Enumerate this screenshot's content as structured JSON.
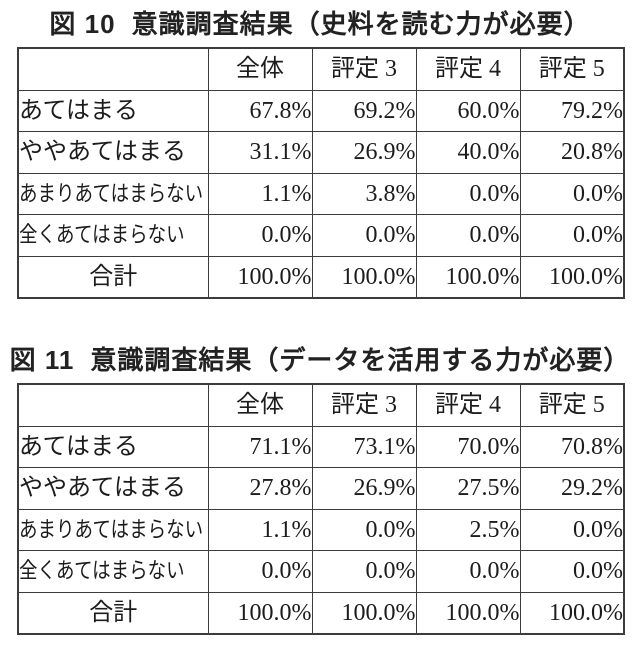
{
  "page": {
    "background": "#ffffff",
    "text_color": "#1c1c1c",
    "border_color": "#3c3c3c"
  },
  "tables": [
    {
      "title_prefix": "図 10",
      "title_body": "意識調査結果（史料を読む力が必要）",
      "columns": [
        "",
        "全体",
        "評定 3",
        "評定 4",
        "評定 5"
      ],
      "rows": [
        {
          "label": "あてはまる",
          "values": [
            "67.8%",
            "69.2%",
            "60.0%",
            "79.2%"
          ]
        },
        {
          "label": "ややあてはまる",
          "values": [
            "31.1%",
            "26.9%",
            "40.0%",
            "20.8%"
          ]
        },
        {
          "label": "あまりあてはまらない",
          "values": [
            "1.1%",
            "3.8%",
            "0.0%",
            "0.0%"
          ]
        },
        {
          "label": "全くあてはまらない",
          "values": [
            "0.0%",
            "0.0%",
            "0.0%",
            "0.0%"
          ]
        },
        {
          "label": "合計",
          "values": [
            "100.0%",
            "100.0%",
            "100.0%",
            "100.0%"
          ]
        }
      ]
    },
    {
      "title_prefix": "図 11",
      "title_body": "意識調査結果（データを活用する力が必要）",
      "columns": [
        "",
        "全体",
        "評定 3",
        "評定 4",
        "評定 5"
      ],
      "rows": [
        {
          "label": "あてはまる",
          "values": [
            "71.1%",
            "73.1%",
            "70.0%",
            "70.8%"
          ]
        },
        {
          "label": "ややあてはまる",
          "values": [
            "27.8%",
            "26.9%",
            "27.5%",
            "29.2%"
          ]
        },
        {
          "label": "あまりあてはまらない",
          "values": [
            "1.1%",
            "0.0%",
            "2.5%",
            "0.0%"
          ]
        },
        {
          "label": "全くあてはまらない",
          "values": [
            "0.0%",
            "0.0%",
            "0.0%",
            "0.0%"
          ]
        },
        {
          "label": "合計",
          "values": [
            "100.0%",
            "100.0%",
            "100.0%",
            "100.0%"
          ]
        }
      ]
    }
  ]
}
